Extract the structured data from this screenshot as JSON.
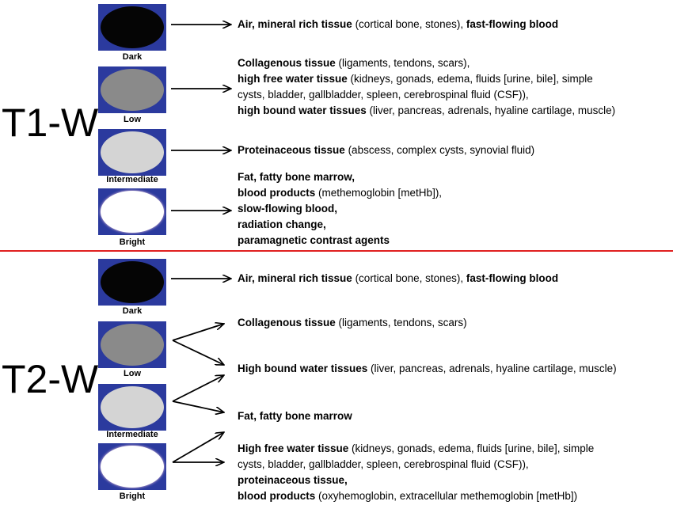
{
  "colors": {
    "divider": "#e02020",
    "swatch_border": "#2b3a9e",
    "dark": "#050505",
    "low": "#8a8a8a",
    "intermediate": "#d4d4d4",
    "bright": "#ffffff"
  },
  "t1": {
    "title": "T1-W",
    "swatches": [
      "Dark",
      "Low",
      "Intermediate",
      "Bright"
    ],
    "lines": [
      [
        {
          "b": true,
          "t": "Air, mineral rich tissue"
        },
        {
          "b": false,
          "t": " (cortical bone, stones), "
        },
        {
          "b": true,
          "t": "fast-flowing blood"
        }
      ],
      [
        {
          "b": true,
          "t": "Collagenous tissue"
        },
        {
          "b": false,
          "t": " (ligaments, tendons, scars),"
        }
      ],
      [
        {
          "b": true,
          "t": "high free water tissue"
        },
        {
          "b": false,
          "t": " (kidneys, gonads, edema, fluids [urine, bile], simple"
        }
      ],
      [
        {
          "b": false,
          "t": "cysts, bladder, gallbladder, spleen, cerebrospinal fluid (CSF)),"
        }
      ],
      [
        {
          "b": true,
          "t": "high bound water tissues"
        },
        {
          "b": false,
          "t": " (liver, pancreas, adrenals, hyaline cartilage, muscle)"
        }
      ],
      [
        {
          "b": true,
          "t": "Proteinaceous tissue"
        },
        {
          "b": false,
          "t": " (abscess, complex cysts, synovial fluid)"
        }
      ],
      [
        {
          "b": true,
          "t": "Fat, fatty bone marrow,"
        }
      ],
      [
        {
          "b": true,
          "t": "blood products"
        },
        {
          "b": false,
          "t": " (methemoglobin [metHb]),"
        }
      ],
      [
        {
          "b": true,
          "t": "slow-flowing blood,"
        }
      ],
      [
        {
          "b": true,
          "t": "radiation change,"
        }
      ],
      [
        {
          "b": true,
          "t": "paramagnetic contrast agents"
        }
      ]
    ]
  },
  "t2": {
    "title": "T2-W",
    "swatches": [
      "Dark",
      "Low",
      "Intermediate",
      "Bright"
    ],
    "lines": [
      [
        {
          "b": true,
          "t": "Air, mineral rich tissue"
        },
        {
          "b": false,
          "t": " (cortical bone, stones), "
        },
        {
          "b": true,
          "t": "fast-flowing blood"
        }
      ],
      [
        {
          "b": true,
          "t": "Collagenous tissue"
        },
        {
          "b": false,
          "t": " (ligaments, tendons, scars)"
        }
      ],
      [
        {
          "b": true,
          "t": "High bound water tissues"
        },
        {
          "b": false,
          "t": " (liver, pancreas, adrenals, hyaline cartilage, muscle)"
        }
      ],
      [
        {
          "b": true,
          "t": "Fat, fatty bone marrow"
        }
      ],
      [
        {
          "b": true,
          "t": "High free water tissue"
        },
        {
          "b": false,
          "t": " (kidneys, gonads, edema, fluids [urine, bile], simple"
        }
      ],
      [
        {
          "b": false,
          "t": "cysts, bladder, gallbladder, spleen, cerebrospinal fluid (CSF)),"
        }
      ],
      [
        {
          "b": true,
          "t": "proteinaceous tissue,"
        }
      ],
      [
        {
          "b": true,
          "t": "blood products"
        },
        {
          "b": false,
          "t": " (oxyhemoglobin, extracellular methemoglobin [metHb])"
        }
      ]
    ]
  }
}
